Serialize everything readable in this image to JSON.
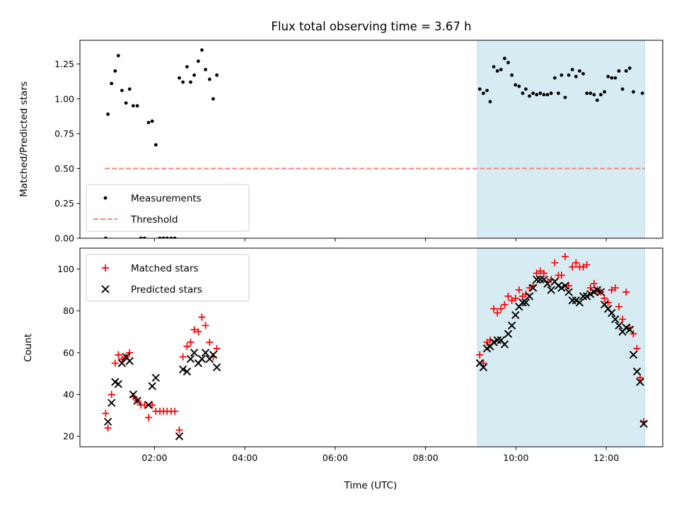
{
  "chart_data": [
    {
      "type": "scatter",
      "title": "Flux total observing time = 3.67 h",
      "xlabel": "",
      "ylabel": "Matched/Predicted stars",
      "xlim": [
        0.35,
        13.25
      ],
      "ylim": [
        0.0,
        1.42
      ],
      "xticks": [
        2,
        4,
        6,
        8,
        10,
        12
      ],
      "yticks": [
        0.0,
        0.25,
        0.5,
        0.75,
        1.0,
        1.25
      ],
      "ytick_labels": [
        "0.00",
        "0.25",
        "0.50",
        "0.75",
        "1.00",
        "1.25"
      ],
      "shaded_region": {
        "x": [
          9.15,
          12.85
        ],
        "color": "#add8e6"
      },
      "legend": {
        "placement": "lower-left",
        "entries": [
          "Measurements",
          "Threshold"
        ]
      },
      "series": [
        {
          "name": "Measurements",
          "marker": "dot",
          "color": "#000000",
          "points": [
            [
              0.92,
              0.0
            ],
            [
              0.97,
              0.89
            ],
            [
              1.05,
              1.11
            ],
            [
              1.13,
              1.2
            ],
            [
              1.2,
              1.31
            ],
            [
              1.28,
              1.06
            ],
            [
              1.37,
              0.97
            ],
            [
              1.45,
              1.07
            ],
            [
              1.53,
              0.95
            ],
            [
              1.62,
              0.95
            ],
            [
              1.7,
              0.0
            ],
            [
              1.78,
              0.0
            ],
            [
              1.87,
              0.83
            ],
            [
              1.95,
              0.84
            ],
            [
              2.03,
              0.67
            ],
            [
              2.12,
              0.0
            ],
            [
              2.2,
              0.0
            ],
            [
              2.28,
              0.0
            ],
            [
              2.37,
              0.0
            ],
            [
              2.45,
              0.0
            ],
            [
              2.55,
              1.15
            ],
            [
              2.63,
              1.12
            ],
            [
              2.72,
              1.23
            ],
            [
              2.8,
              1.12
            ],
            [
              2.88,
              1.17
            ],
            [
              2.97,
              1.27
            ],
            [
              3.05,
              1.35
            ],
            [
              3.13,
              1.21
            ],
            [
              3.22,
              1.14
            ],
            [
              3.3,
              1.0
            ],
            [
              3.38,
              1.17
            ],
            [
              9.2,
              1.07
            ],
            [
              9.28,
              1.04
            ],
            [
              9.36,
              1.06
            ],
            [
              9.43,
              0.98
            ],
            [
              9.51,
              1.23
            ],
            [
              9.59,
              1.2
            ],
            [
              9.67,
              1.21
            ],
            [
              9.75,
              1.29
            ],
            [
              9.83,
              1.26
            ],
            [
              9.91,
              1.17
            ],
            [
              9.99,
              1.1
            ],
            [
              10.07,
              1.09
            ],
            [
              10.15,
              1.04
            ],
            [
              10.22,
              1.07
            ],
            [
              10.3,
              1.02
            ],
            [
              10.38,
              1.04
            ],
            [
              10.46,
              1.03
            ],
            [
              10.54,
              1.04
            ],
            [
              10.62,
              1.03
            ],
            [
              10.7,
              1.03
            ],
            [
              10.78,
              1.04
            ],
            [
              10.86,
              1.15
            ],
            [
              10.94,
              1.04
            ],
            [
              11.01,
              1.17
            ],
            [
              11.09,
              1.01
            ],
            [
              11.17,
              1.17
            ],
            [
              11.25,
              1.21
            ],
            [
              11.33,
              1.16
            ],
            [
              11.41,
              1.2
            ],
            [
              11.49,
              1.18
            ],
            [
              11.57,
              1.04
            ],
            [
              11.65,
              1.04
            ],
            [
              11.73,
              1.03
            ],
            [
              11.8,
              0.99
            ],
            [
              11.88,
              1.03
            ],
            [
              11.96,
              1.05
            ],
            [
              12.04,
              1.16
            ],
            [
              12.12,
              1.15
            ],
            [
              12.2,
              1.15
            ],
            [
              12.28,
              1.2
            ],
            [
              12.36,
              1.07
            ],
            [
              12.44,
              1.2
            ],
            [
              12.52,
              1.22
            ],
            [
              12.6,
              1.05
            ],
            [
              12.8,
              1.04
            ]
          ]
        },
        {
          "name": "Threshold",
          "style": "dashed-line",
          "color": "#ff7f7f",
          "points": [
            [
              0.9,
              0.5
            ],
            [
              12.85,
              0.5
            ]
          ]
        }
      ]
    },
    {
      "type": "scatter",
      "title": "",
      "xlabel": "Time (UTC)",
      "ylabel": "Count",
      "xlim": [
        0.35,
        13.25
      ],
      "ylim": [
        15,
        110
      ],
      "xticks": [
        2,
        4,
        6,
        8,
        10,
        12
      ],
      "xtick_labels": [
        "02:00",
        "04:00",
        "06:00",
        "08:00",
        "10:00",
        "12:00"
      ],
      "yticks": [
        20,
        40,
        60,
        80,
        100
      ],
      "ytick_labels": [
        "20",
        "40",
        "60",
        "80",
        "100"
      ],
      "shaded_region": {
        "x": [
          9.15,
          12.85
        ],
        "color": "#add8e6"
      },
      "legend": {
        "placement": "top-left",
        "entries": [
          "Matched stars",
          "Predicted stars"
        ]
      },
      "series": [
        {
          "name": "Matched stars",
          "marker": "plus",
          "color": "#ff0000",
          "points": [
            [
              0.92,
              31
            ],
            [
              0.97,
              24
            ],
            [
              1.05,
              40
            ],
            [
              1.13,
              55
            ],
            [
              1.2,
              59
            ],
            [
              1.28,
              57
            ],
            [
              1.37,
              58
            ],
            [
              1.45,
              60
            ],
            [
              1.53,
              39
            ],
            [
              1.62,
              37
            ],
            [
              1.7,
              35
            ],
            [
              1.78,
              35
            ],
            [
              1.87,
              29
            ],
            [
              1.95,
              35
            ],
            [
              2.03,
              32
            ],
            [
              2.12,
              32
            ],
            [
              2.2,
              32
            ],
            [
              2.28,
              32
            ],
            [
              2.37,
              32
            ],
            [
              2.45,
              32
            ],
            [
              2.55,
              23
            ],
            [
              2.63,
              58
            ],
            [
              2.72,
              63
            ],
            [
              2.8,
              65
            ],
            [
              2.88,
              71
            ],
            [
              2.97,
              70
            ],
            [
              3.05,
              77
            ],
            [
              3.13,
              73
            ],
            [
              3.22,
              65
            ],
            [
              3.3,
              58
            ],
            [
              3.38,
              62
            ],
            [
              9.2,
              59
            ],
            [
              9.28,
              55
            ],
            [
              9.36,
              65
            ],
            [
              9.43,
              66
            ],
            [
              9.51,
              81
            ],
            [
              9.59,
              79
            ],
            [
              9.67,
              81
            ],
            [
              9.75,
              83
            ],
            [
              9.83,
              87
            ],
            [
              9.91,
              85
            ],
            [
              9.99,
              86
            ],
            [
              10.07,
              90
            ],
            [
              10.15,
              87
            ],
            [
              10.22,
              88
            ],
            [
              10.3,
              91
            ],
            [
              10.38,
              92
            ],
            [
              10.46,
              98
            ],
            [
              10.54,
              99
            ],
            [
              10.62,
              98
            ],
            [
              10.7,
              94
            ],
            [
              10.78,
              95
            ],
            [
              10.86,
              103
            ],
            [
              10.94,
              97
            ],
            [
              11.01,
              97
            ],
            [
              11.09,
              106
            ],
            [
              11.17,
              92
            ],
            [
              11.25,
              101
            ],
            [
              11.33,
              103
            ],
            [
              11.41,
              101
            ],
            [
              11.49,
              101
            ],
            [
              11.57,
              102
            ],
            [
              11.65,
              91
            ],
            [
              11.73,
              93
            ],
            [
              11.8,
              90
            ],
            [
              11.88,
              89
            ],
            [
              11.96,
              86
            ],
            [
              12.04,
              84
            ],
            [
              12.12,
              90
            ],
            [
              12.2,
              91
            ],
            [
              12.28,
              82
            ],
            [
              12.36,
              76
            ],
            [
              12.44,
              89
            ],
            [
              12.52,
              72
            ],
            [
              12.6,
              69
            ],
            [
              12.68,
              62
            ],
            [
              12.75,
              48
            ],
            [
              12.83,
              27
            ]
          ]
        },
        {
          "name": "Predicted stars",
          "marker": "x",
          "color": "#000000",
          "points": [
            [
              0.97,
              27
            ],
            [
              1.05,
              36
            ],
            [
              1.13,
              46
            ],
            [
              1.2,
              45
            ],
            [
              1.28,
              55
            ],
            [
              1.37,
              58
            ],
            [
              1.45,
              56
            ],
            [
              1.53,
              40
            ],
            [
              1.62,
              37
            ],
            [
              1.87,
              35
            ],
            [
              1.95,
              44
            ],
            [
              2.03,
              48
            ],
            [
              2.55,
              20
            ],
            [
              2.63,
              52
            ],
            [
              2.72,
              51
            ],
            [
              2.8,
              57
            ],
            [
              2.88,
              60
            ],
            [
              2.97,
              55
            ],
            [
              3.05,
              57
            ],
            [
              3.13,
              60
            ],
            [
              3.22,
              57
            ],
            [
              3.3,
              59
            ],
            [
              3.38,
              53
            ],
            [
              9.2,
              55
            ],
            [
              9.28,
              53
            ],
            [
              9.36,
              62
            ],
            [
              9.43,
              63
            ],
            [
              9.51,
              65
            ],
            [
              9.59,
              66
            ],
            [
              9.67,
              66
            ],
            [
              9.75,
              64
            ],
            [
              9.83,
              69
            ],
            [
              9.91,
              73
            ],
            [
              9.99,
              78
            ],
            [
              10.07,
              82
            ],
            [
              10.15,
              84
            ],
            [
              10.22,
              84
            ],
            [
              10.3,
              87
            ],
            [
              10.38,
              91
            ],
            [
              10.46,
              95
            ],
            [
              10.54,
              95
            ],
            [
              10.62,
              95
            ],
            [
              10.7,
              93
            ],
            [
              10.78,
              90
            ],
            [
              10.86,
              94
            ],
            [
              10.94,
              92
            ],
            [
              11.01,
              91
            ],
            [
              11.09,
              92
            ],
            [
              11.17,
              89
            ],
            [
              11.25,
              85
            ],
            [
              11.33,
              85
            ],
            [
              11.41,
              84
            ],
            [
              11.49,
              87
            ],
            [
              11.57,
              87
            ],
            [
              11.65,
              88
            ],
            [
              11.73,
              89
            ],
            [
              11.8,
              90
            ],
            [
              11.88,
              89
            ],
            [
              11.96,
              83
            ],
            [
              12.04,
              81
            ],
            [
              12.12,
              79
            ],
            [
              12.2,
              76
            ],
            [
              12.28,
              73
            ],
            [
              12.36,
              70
            ],
            [
              12.44,
              72
            ],
            [
              12.52,
              71
            ],
            [
              12.6,
              59
            ],
            [
              12.68,
              51
            ],
            [
              12.75,
              46
            ],
            [
              12.83,
              26
            ]
          ]
        }
      ]
    }
  ]
}
